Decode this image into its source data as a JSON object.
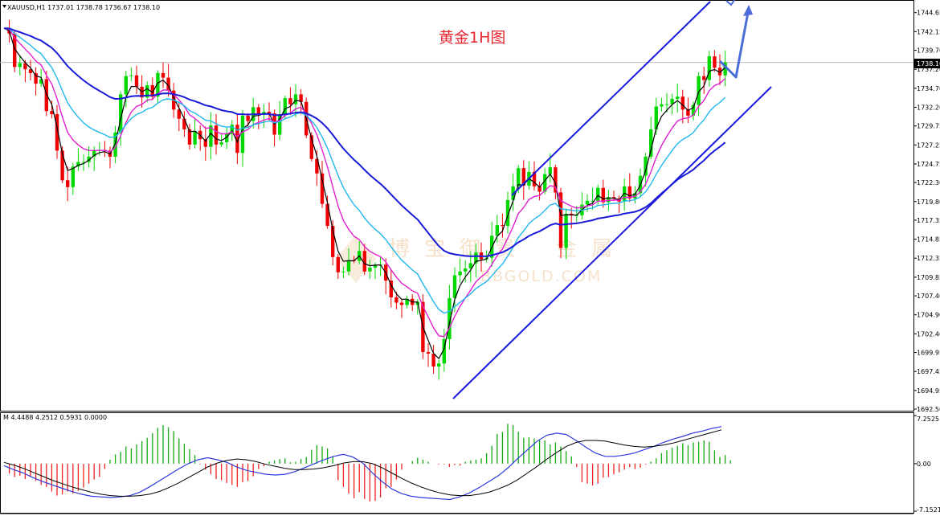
{
  "header": {
    "symbol_line": "XAUUSD,H1  1737.01 1738.78 1736.67 1738.10",
    "title": "黄金1H图",
    "indicator_line": "M 4.4488 4.2512 0.5931 0.0000"
  },
  "watermark": {
    "chars": [
      "博",
      "宝",
      "御",
      "贵",
      "金",
      "属"
    ],
    "domain": "BBGOLD.COM"
  },
  "colors": {
    "bull": "#00d800",
    "bear": "#ee0000",
    "ma_fast": "#000000",
    "ma_pink": "#e020d0",
    "ma_cyan": "#20b8ee",
    "ma_slow": "#1a1ad8",
    "channel": "#1a1adc",
    "arrow": "#4a6cd6",
    "hist_pos": "#11aa11",
    "hist_neg": "#ee2020",
    "sig_blue": "#2c3ae0",
    "sig_black": "#000000"
  },
  "chart_data": [
    {
      "type": "candlestick",
      "series": [
        {
          "name": "price"
        },
        {
          "name": "MA-fast"
        },
        {
          "name": "MA-pink"
        },
        {
          "name": "MA-cyan"
        },
        {
          "name": "MA-slow"
        }
      ],
      "price_axis": {
        "ticks": [
          "1744.65",
          "1742.15",
          "1739.70",
          "1737.20",
          "1734.70",
          "1732.20",
          "1729.75",
          "1727.25",
          "1724.75",
          "1722.30",
          "1719.80",
          "1717.35",
          "1714.85",
          "1712.35",
          "1709.85",
          "1707.40",
          "1704.90",
          "1702.40",
          "1699.95",
          "1697.45",
          "1694.95",
          "1692.50"
        ],
        "current": "1738.10",
        "ylim": [
          1692.5,
          1746.1
        ]
      },
      "closes": [
        1742.6,
        1741.9,
        1737.5,
        1738.0,
        1737.2,
        1736.7,
        1735.3,
        1735.9,
        1731.7,
        1731.3,
        1726.5,
        1722.6,
        1721.7,
        1724.4,
        1725.0,
        1725.0,
        1725.7,
        1726.5,
        1726.6,
        1726.5,
        1725.7,
        1728.9,
        1733.9,
        1736.3,
        1736.4,
        1734.9,
        1733.5,
        1735.1,
        1733.6,
        1736.7,
        1736.1,
        1734.4,
        1731.9,
        1730.7,
        1729.3,
        1727.3,
        1729.1,
        1728.0,
        1727.0,
        1729.8,
        1727.3,
        1727.6,
        1728.7,
        1729.9,
        1726.2,
        1731.1,
        1730.4,
        1732.2,
        1731.2,
        1731.6,
        1731.4,
        1728.6,
        1731.3,
        1733.4,
        1732.6,
        1733.9,
        1732.9,
        1728.5,
        1725.4,
        1723.5,
        1719.5,
        1716.6,
        1712.5,
        1710.5,
        1710.6,
        1712.1,
        1712.0,
        1713.3,
        1710.6,
        1711.1,
        1711.5,
        1711.5,
        1709.4,
        1707.2,
        1706.5,
        1706.2,
        1707.0,
        1706.2,
        1706.6,
        1700.0,
        1699.8,
        1698.1,
        1698.5,
        1701.7,
        1707.1,
        1710.1,
        1710.6,
        1711.0,
        1711.7,
        1713.1,
        1712.2,
        1712.4,
        1715.3,
        1716.7,
        1716.6,
        1720.0,
        1721.8,
        1724.2,
        1721.9,
        1723.7,
        1721.8,
        1721.1,
        1723.4,
        1724.3,
        1721.0,
        1713.7,
        1718.2,
        1718.0,
        1718.0,
        1719.4,
        1719.9,
        1719.9,
        1721.6,
        1719.7,
        1720.4,
        1720.2,
        1719.8,
        1721.8,
        1720.2,
        1720.9,
        1723.2,
        1725.7,
        1729.3,
        1732.3,
        1732.6,
        1732.6,
        1733.3,
        1733.6,
        1731.9,
        1731.1,
        1732.5,
        1736.3,
        1735.8,
        1738.9,
        1737.4,
        1736.4,
        1738.1
      ],
      "ma_pink_visible": true,
      "ma_slow_visible": true
    },
    {
      "type": "histogram",
      "name": "M",
      "values": [
        -1.5,
        -2.0,
        -1.8,
        -2.3,
        -2.0,
        -2.6,
        -3.2,
        -3.5,
        -4.2,
        -4.8,
        -4.6,
        -4.2,
        -4.5,
        -4.1,
        -3.6,
        -3.0,
        -2.4,
        -2.0,
        -0.8,
        0.6,
        1.4,
        1.8,
        2.6,
        2.3,
        2.9,
        3.4,
        3.9,
        4.6,
        5.4,
        5.8,
        5.5,
        4.9,
        3.8,
        3.0,
        2.2,
        1.3,
        -0.1,
        -0.9,
        -1.6,
        -2.3,
        -2.5,
        -2.9,
        -3.2,
        -3.5,
        -2.8,
        -2.6,
        -1.9,
        -0.8,
        -0.4,
        0.3,
        0.5,
        0.7,
        0.8,
        0.2,
        0.3,
        0.7,
        1.0,
        2.1,
        2.8,
        2.6,
        2.3,
        1.0,
        -2.5,
        -3.5,
        -4.5,
        -5.2,
        -4.3,
        -5.3,
        -5.7,
        -5.6,
        -5.1,
        -3.7,
        -3.5,
        -2.4,
        -0.9,
        0.0,
        0.4,
        0.9,
        0.6,
        0.3,
        0.0,
        -0.1,
        -0.1,
        -0.5,
        -0.2,
        -0.3,
        0.3,
        0.5,
        0.6,
        0.8,
        1.6,
        2.7,
        4.5,
        4.8,
        6.0,
        5.8,
        4.8,
        3.9,
        4.0,
        3.8,
        3.6,
        3.5,
        2.9,
        3.2,
        2.6,
        1.9,
        1.1,
        -0.5,
        -2.8,
        -3.0,
        -3.3,
        -3.0,
        -2.1,
        -2.0,
        -1.6,
        -1.3,
        -0.9,
        -0.5,
        -0.8,
        -0.6,
        -0.1,
        0.3,
        0.8,
        1.6,
        2.0,
        2.4,
        2.7,
        3.1,
        2.8,
        3.2,
        3.3,
        3.5,
        3.3,
        2.0,
        1.0,
        1.3,
        0.5
      ],
      "blue_line": [
        -0.3,
        -0.9,
        -1.4,
        -2.1,
        -2.7,
        -3.2,
        -3.7,
        -4.2,
        -4.6,
        -4.9,
        -5.0,
        -5.1,
        -5.0,
        -4.8,
        -4.3,
        -3.5,
        -2.6,
        -1.7,
        -0.8,
        0.0,
        0.6,
        0.9,
        0.6,
        0.2,
        -0.5,
        -1.0,
        -1.3,
        -1.6,
        -1.7,
        -1.6,
        -1.2,
        -0.6,
        0.0,
        0.6,
        1.1,
        1.4,
        1.0,
        0.1,
        -1.4,
        -2.7,
        -3.8,
        -4.5,
        -4.9,
        -5.1,
        -5.2,
        -5.3,
        -5.4,
        -5.0,
        -4.4,
        -3.6,
        -2.7,
        -1.8,
        -0.6,
        0.8,
        2.1,
        3.4,
        4.3,
        4.6,
        4.4,
        3.5,
        2.5,
        1.6,
        1.1,
        1.1,
        1.3,
        1.6,
        2.1,
        2.6,
        3.2,
        3.7,
        4.1,
        4.6,
        4.9,
        5.3,
        5.6
      ],
      "black_line": [
        0.2,
        -0.2,
        -0.7,
        -1.3,
        -1.9,
        -2.5,
        -3.0,
        -3.5,
        -3.9,
        -4.3,
        -4.6,
        -4.8,
        -4.9,
        -4.9,
        -4.8,
        -4.6,
        -4.2,
        -3.6,
        -2.9,
        -2.1,
        -1.3,
        -0.5,
        0.1,
        0.5,
        0.7,
        0.6,
        0.3,
        -0.1,
        -0.4,
        -0.7,
        -0.9,
        -0.9,
        -0.8,
        -0.6,
        -0.3,
        0.1,
        0.3,
        0.3,
        0.0,
        -0.6,
        -1.4,
        -2.2,
        -2.9,
        -3.5,
        -4.0,
        -4.4,
        -4.7,
        -4.8,
        -4.8,
        -4.6,
        -4.3,
        -3.8,
        -3.2,
        -2.4,
        -1.4,
        -0.4,
        0.7,
        1.7,
        2.6,
        3.2,
        3.5,
        3.5,
        3.4,
        3.1,
        2.8,
        2.6,
        2.5,
        2.6,
        2.8,
        3.1,
        3.5,
        3.9,
        4.3,
        4.7,
        5.1
      ],
      "axis": {
        "ticks": [
          "7.2525",
          "0.00",
          "-7.1521"
        ],
        "ylim": [
          -7.1521,
          7.2525
        ]
      }
    }
  ]
}
